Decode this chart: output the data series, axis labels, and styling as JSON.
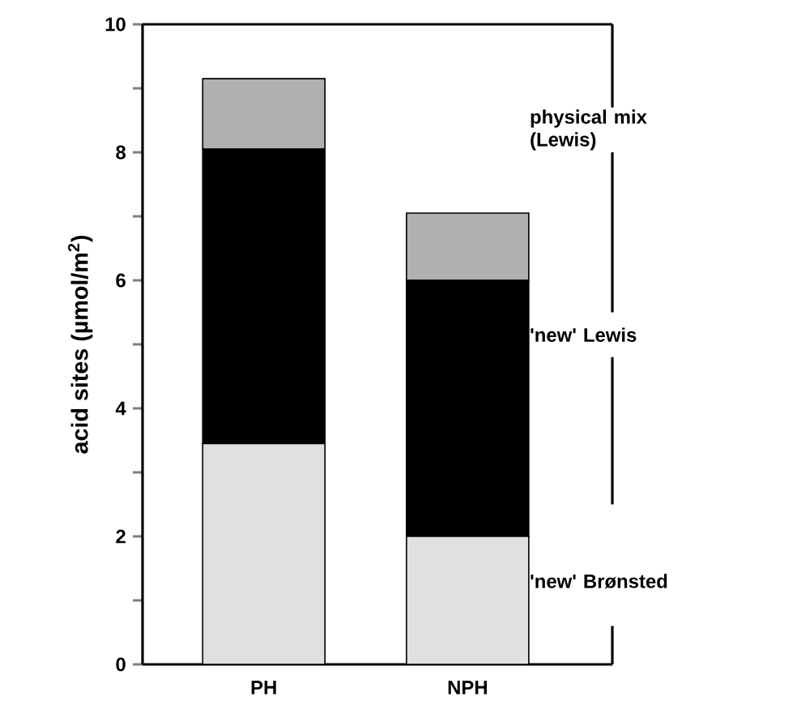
{
  "chart_data": {
    "type": "bar",
    "stacked": true,
    "ylabel": "acid sites (µmol/m$^{2}$)",
    "categories": [
      "PH",
      "NPH"
    ],
    "series": [
      {
        "name": "'new' Brønsted",
        "color": "#e0e0e0",
        "values": [
          3.45,
          2.0
        ]
      },
      {
        "name": "'new' Lewis",
        "color": "#000000",
        "values": [
          4.6,
          4.0
        ]
      },
      {
        "name": "physical mix (Lewis)",
        "color": "#b0b0b0",
        "values": [
          1.1,
          1.05
        ]
      }
    ],
    "ylim": [
      0,
      10
    ],
    "yticks": [
      0,
      {
        "value": 1,
        "label": null
      },
      2,
      {
        "value": 3,
        "label": null
      },
      4,
      {
        "value": 5,
        "label": null
      },
      6,
      {
        "value": 7,
        "label": null
      },
      8,
      {
        "value": 9,
        "label": null
      },
      10
    ]
  }
}
